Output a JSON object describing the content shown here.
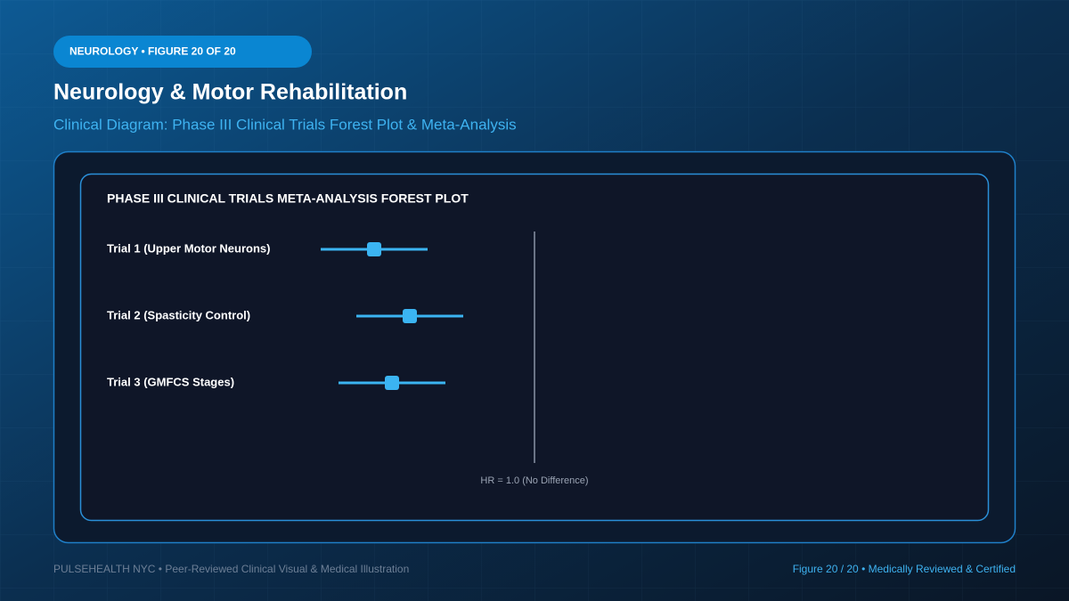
{
  "header": {
    "badge": "NEUROLOGY • FIGURE 20 OF 20",
    "title": "Neurology & Motor Rehabilitation",
    "subtitle": "Clinical Diagram: Phase III Clinical Trials Forest Plot & Meta-Analysis"
  },
  "chart_data": {
    "type": "forest",
    "title": "PHASE III CLINICAL TRIALS META-ANALYSIS FOREST PLOT",
    "categories": [
      "Trial 1 (Upper Motor Neurons)",
      "Trial 2 (Spasticity Control)",
      "Trial 3 (GMFCS Stages)"
    ],
    "values": [
      0.55,
      0.65,
      0.6
    ],
    "ci_low": [
      0.4,
      0.5,
      0.45
    ],
    "ci_high": [
      0.7,
      0.8,
      0.75
    ],
    "xlim": [
      0.4,
      1.6
    ],
    "reference": {
      "value": 1,
      "label": "HR = 1.0 (No Difference)"
    },
    "color": "#3bb4f2"
  },
  "footer": {
    "left": "PULSEHEALTH NYC • Peer-Reviewed Clinical Visual & Medical Illustration",
    "right": "Figure 20 / 20 • Medically Reviewed & Certified"
  }
}
